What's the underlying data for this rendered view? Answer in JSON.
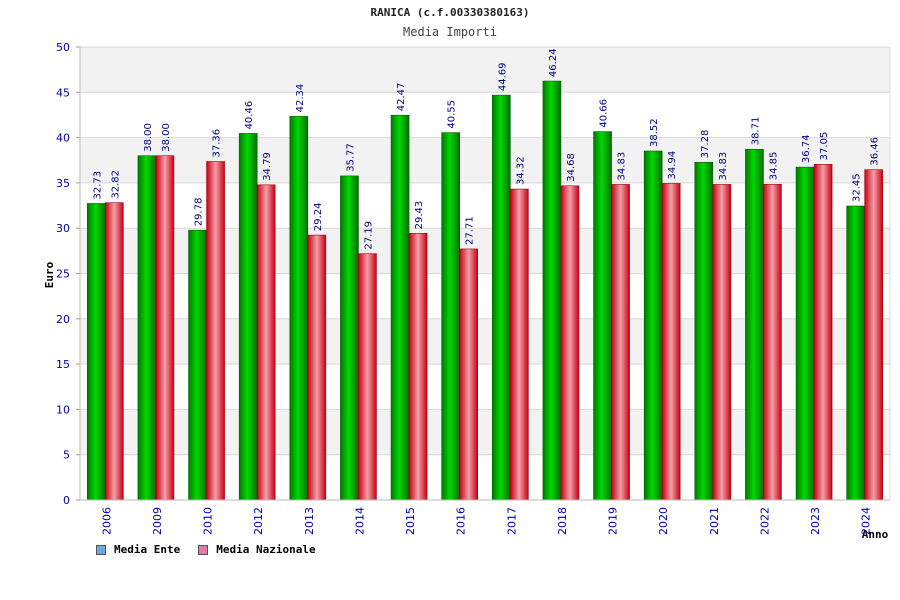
{
  "chart_data": {
    "type": "bar",
    "title": "RANICA (c.f.00330380163)",
    "subtitle": "Media Importi",
    "ylabel": "Euro",
    "xlabel": "Anno",
    "ylim": [
      0,
      50
    ],
    "yticks": [
      0,
      5,
      10,
      15,
      20,
      25,
      30,
      35,
      40,
      45,
      50
    ],
    "categories": [
      "2006",
      "2009",
      "2010",
      "2012",
      "2013",
      "2014",
      "2015",
      "2016",
      "2017",
      "2018",
      "2019",
      "2020",
      "2021",
      "2022",
      "2023",
      "2024"
    ],
    "series": [
      {
        "name": "Media Ente",
        "values": [
          32.73,
          38.0,
          29.78,
          40.46,
          42.34,
          35.77,
          42.47,
          40.55,
          44.69,
          46.24,
          40.66,
          38.52,
          37.28,
          38.71,
          36.74,
          32.45
        ]
      },
      {
        "name": "Media Nazionale",
        "values": [
          32.82,
          38.0,
          37.36,
          34.79,
          29.24,
          27.19,
          29.43,
          27.71,
          34.32,
          34.68,
          34.83,
          34.94,
          34.83,
          34.85,
          37.05,
          36.46
        ]
      }
    ],
    "legend": [
      {
        "label": "Media Ente",
        "color": "#6aa7e6"
      },
      {
        "label": "Media Nazionale",
        "color": "#e07aa6"
      }
    ],
    "colors": {
      "ente_bar": "#00b400",
      "nazionale_bar": "#e8283c",
      "axis_text": "#0000aa",
      "value_label": "#000080"
    },
    "grid": true,
    "legend_position": "bottom-left"
  }
}
